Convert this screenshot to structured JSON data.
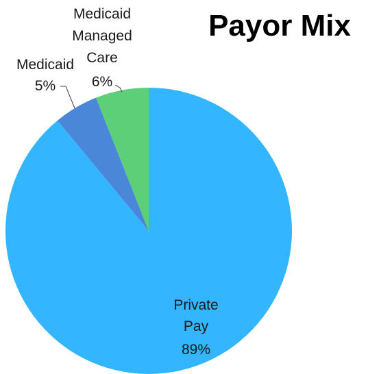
{
  "chart_data": {
    "type": "pie",
    "title": "Payor Mix",
    "slices": [
      {
        "label_lines": [
          "Private",
          "Pay"
        ],
        "value_label": "89%",
        "value": 89,
        "color": "#33b5ff"
      },
      {
        "label_lines": [
          "Medicaid"
        ],
        "value_label": "5%",
        "value": 5,
        "color": "#4a87d9"
      },
      {
        "label_lines": [
          "Medicaid",
          "Managed",
          "Care"
        ],
        "value_label": "6%",
        "value": 6,
        "color": "#5ccf78"
      }
    ],
    "start": "12 o'clock",
    "direction": "clockwise",
    "legend": "none"
  }
}
